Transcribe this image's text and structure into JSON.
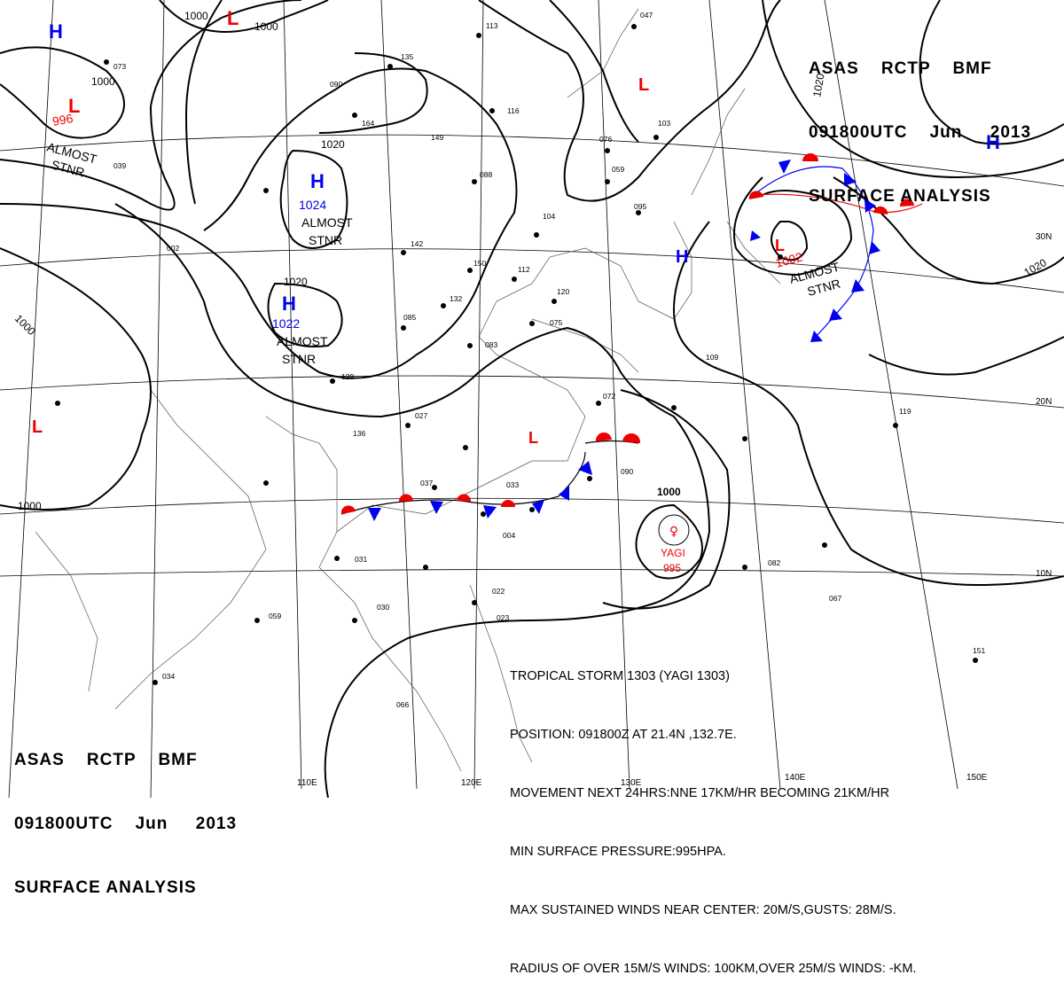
{
  "header": {
    "line1": [
      "ASAS",
      "RCTP",
      "BMF"
    ],
    "line2": [
      "091800UTC",
      "Jun",
      "2013"
    ],
    "line3": "SURFACE ANALYSIS"
  },
  "storm_text": {
    "title": "TROPICAL STORM 1303 (YAGI 1303)",
    "position": "POSITION: 091800Z AT 21.4N ,132.7E.",
    "movement": "MOVEMENT NEXT 24HRS:NNE 17KM/HR BECOMING 21KM/HR",
    "pressure": "MIN SURFACE PRESSURE:995HPA.",
    "winds": "MAX SUSTAINED WINDS NEAR CENTER: 20M/S,GUSTS: 28M/S.",
    "radius": "RADIUS OF OVER 15M/S WINDS: 100KM,OVER 25M/S WINDS: -KM."
  },
  "longitude_labels": [
    "110E",
    "120E",
    "130E",
    "140E",
    "150E"
  ],
  "latitude_labels": [
    "30N",
    "20N",
    "10N"
  ],
  "pressure_centers": [
    {
      "type": "H",
      "value": "1024",
      "note": "ALMOST STNR"
    },
    {
      "type": "H",
      "value": "1022",
      "note": "ALMOST STNR"
    },
    {
      "type": "L",
      "value": "996",
      "note": "ALMOST STNR"
    },
    {
      "type": "L",
      "value": "1002",
      "note": "ALMOST STNR"
    },
    {
      "type": "H",
      "value": "",
      "note": ""
    },
    {
      "type": "H",
      "value": "",
      "note": ""
    },
    {
      "type": "H",
      "value": "",
      "note": ""
    },
    {
      "type": "L",
      "value": "",
      "note": ""
    },
    {
      "type": "L",
      "value": "",
      "note": ""
    },
    {
      "type": "L",
      "value": "",
      "note": ""
    },
    {
      "type": "L",
      "value": "",
      "note": ""
    }
  ],
  "typhoon": {
    "name": "YAGI",
    "pressure": "995"
  },
  "isobar_labels": [
    "1000",
    "1000",
    "1000",
    "1000",
    "1020",
    "1020",
    "1020",
    "1020",
    "1000"
  ],
  "station_samples": [
    "113",
    "047",
    "135",
    "090",
    "164",
    "149",
    "116",
    "103",
    "076",
    "059",
    "088",
    "104",
    "095",
    "142",
    "150",
    "112",
    "120",
    "132",
    "075",
    "083",
    "072",
    "027",
    "037",
    "033",
    "004",
    "031",
    "030",
    "059",
    "066",
    "034",
    "022",
    "023",
    "090",
    "082",
    "067",
    "151",
    "119",
    "136",
    "129",
    "085",
    "002",
    "039",
    "073",
    "109"
  ],
  "colors": {
    "high": "#0000ee",
    "low": "#ee0000",
    "isobar": "#000000",
    "grid": "#000000",
    "warm_front": "#ee0000",
    "cold_front": "#0000ee"
  }
}
